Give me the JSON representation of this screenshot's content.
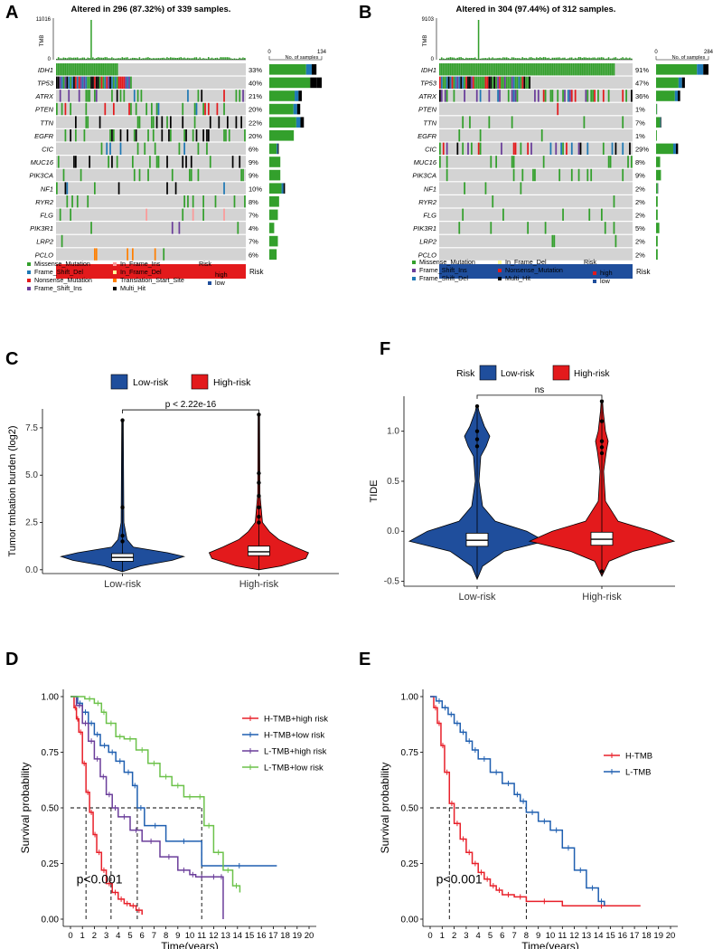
{
  "panel_letters": {
    "A": "A",
    "B": "B",
    "C": "C",
    "D": "D",
    "E": "E",
    "F": "F"
  },
  "colors": {
    "missense": "#33a02c",
    "frame_del": "#1f78b4",
    "nonsense": "#e31a1c",
    "frame_ins": "#6a3d9a",
    "inframe_ins": "#fb9a99",
    "inframe_del": "#ffff99",
    "tss": "#ff7f00",
    "multi": "#000000",
    "high": "#e31a1c",
    "low": "#1f4e9c",
    "bg": "#d3d3d3",
    "nsbar": "#33a02c"
  },
  "chart_data": [
    {
      "type": "oncoplot",
      "id": "A",
      "title": "Altered in 296 (87.32%) of 339 samples.",
      "tmb_label": "TMB",
      "tmb_max": "11016",
      "tmb_min": "0",
      "ns_axis_min": "0",
      "ns_axis_max": "134",
      "ns_label": "No. of samples",
      "genes": [
        "IDH1",
        "TP53",
        "ATRX",
        "PTEN",
        "TTN",
        "EGFR",
        "CIC",
        "MUC16",
        "PIK3CA",
        "NF1",
        "RYR2",
        "FLG",
        "PIK3R1",
        "LRP2",
        "PCLO"
      ],
      "percents": [
        "33%",
        "40%",
        "21%",
        "20%",
        "22%",
        "20%",
        "6%",
        "9%",
        "9%",
        "10%",
        "8%",
        "7%",
        "4%",
        "7%",
        "6%"
      ],
      "risk_label": "Risk",
      "legend_variants": [
        "Missense_Mutation",
        "Frame_Shift_Del",
        "Nonsense_Mutation",
        "Frame_Shift_Ins",
        "In_Frame_Ins",
        "In_Frame_Del",
        "Translation_Start_Site",
        "Multi_Hit"
      ],
      "legend_risk_title": "Risk",
      "legend_risk": [
        "high",
        "low"
      ]
    },
    {
      "type": "oncoplot",
      "id": "B",
      "title": "Altered in 304 (97.44%) of 312 samples.",
      "tmb_label": "TMB",
      "tmb_max": "9103",
      "tmb_min": "0",
      "ns_axis_min": "0",
      "ns_axis_max": "284",
      "ns_label": "No. of samples",
      "genes": [
        "IDH1",
        "TP53",
        "ATRX",
        "PTEN",
        "TTN",
        "EGFR",
        "CIC",
        "MUC16",
        "PIK3CA",
        "NF1",
        "RYR2",
        "FLG",
        "PIK3R1",
        "LRP2",
        "PCLO"
      ],
      "percents": [
        "91%",
        "47%",
        "36%",
        "1%",
        "7%",
        "1%",
        "29%",
        "8%",
        "9%",
        "2%",
        "2%",
        "2%",
        "5%",
        "2%",
        "2%"
      ],
      "risk_label": "Risk",
      "legend_variants": [
        "Missense_Mutation",
        "Frame_Shift_Ins",
        "Frame_Shift_Del",
        "In_Frame_Del",
        "Nonsense_Mutation",
        "Multi_Hit"
      ],
      "legend_risk_title": "Risk",
      "legend_risk": [
        "high",
        "low"
      ]
    },
    {
      "type": "violin",
      "id": "C",
      "legend": [
        "Low-risk",
        "High-risk"
      ],
      "categories": [
        "Low-risk",
        "High-risk"
      ],
      "ylabel": "Tumor tmbation burden (log2)",
      "yticks": [
        "0.0",
        "2.5",
        "5.0",
        "7.5"
      ],
      "ylim": [
        -0.2,
        8.5
      ],
      "pvalue": "p < 2.22e-16",
      "medians": [
        0.65,
        0.95
      ],
      "q1": [
        0.45,
        0.75
      ],
      "q3": [
        0.85,
        1.25
      ],
      "max": [
        7.9,
        8.2
      ]
    },
    {
      "type": "violin",
      "id": "F",
      "legend_title": "Risk",
      "legend": [
        "Low-risk",
        "High-risk"
      ],
      "categories": [
        "Low-risk",
        "High-risk"
      ],
      "ylabel": "TIDE",
      "yticks": [
        "-0.5",
        "0.0",
        "0.5",
        "1.0"
      ],
      "ylim": [
        -0.55,
        1.35
      ],
      "pvalue": "ns",
      "medians": [
        -0.09,
        -0.08
      ],
      "q1": [
        -0.15,
        -0.14
      ],
      "q3": [
        -0.02,
        -0.01
      ],
      "max": [
        1.25,
        1.3
      ],
      "min": [
        -0.48,
        -0.45
      ]
    },
    {
      "type": "line",
      "id": "D",
      "ylabel": "Survival probability",
      "xlabel": "Time(years)",
      "yticks": [
        "0.00",
        "0.25",
        "0.50",
        "0.75",
        "1.00"
      ],
      "xticks": [
        "0",
        "1",
        "2",
        "3",
        "4",
        "5",
        "6",
        "7",
        "8",
        "9",
        "10",
        "11",
        "12",
        "13",
        "14",
        "15",
        "16",
        "17",
        "18",
        "19",
        "20"
      ],
      "pvalue": "p<0.001",
      "series": [
        {
          "name": "H-TMB+high risk",
          "color": "#e8202a",
          "t": [
            0,
            0.3,
            0.5,
            0.7,
            1.0,
            1.3,
            1.6,
            1.9,
            2.2,
            2.6,
            3.0,
            3.5,
            4.0,
            4.5,
            5.0,
            5.5,
            6.0
          ],
          "s": [
            1.0,
            0.95,
            0.9,
            0.84,
            0.7,
            0.57,
            0.48,
            0.38,
            0.3,
            0.22,
            0.16,
            0.12,
            0.09,
            0.07,
            0.06,
            0.04,
            0.02
          ]
        },
        {
          "name": "H-TMB+low risk",
          "color": "#1f5fb0",
          "t": [
            0,
            0.6,
            1.0,
            1.5,
            2.0,
            2.5,
            3.2,
            3.8,
            4.5,
            5.2,
            5.6,
            6.2,
            8.0,
            11.0,
            17.3
          ],
          "s": [
            1.0,
            0.97,
            0.93,
            0.88,
            0.83,
            0.78,
            0.75,
            0.71,
            0.66,
            0.6,
            0.5,
            0.42,
            0.35,
            0.24,
            0.24
          ]
        },
        {
          "name": "L-TMB+high risk",
          "color": "#6a3d9a",
          "t": [
            0,
            0.5,
            1.0,
            1.5,
            2.0,
            2.5,
            3.0,
            3.5,
            4.0,
            5.0,
            6.0,
            7.5,
            9.0,
            10.0,
            10.5,
            11.5,
            12.5,
            12.8
          ],
          "s": [
            1.0,
            0.96,
            0.88,
            0.8,
            0.72,
            0.64,
            0.56,
            0.5,
            0.46,
            0.4,
            0.35,
            0.28,
            0.22,
            0.2,
            0.19,
            0.19,
            0.19,
            0.0
          ]
        },
        {
          "name": "L-TMB+low risk",
          "color": "#6cc24a",
          "t": [
            0,
            1.2,
            2.0,
            2.6,
            3.0,
            3.8,
            4.5,
            5.5,
            6.5,
            7.5,
            8.5,
            9.5,
            10.5,
            11.2,
            12.0,
            12.8,
            13.6,
            14.2
          ],
          "s": [
            1.0,
            0.99,
            0.97,
            0.93,
            0.88,
            0.82,
            0.81,
            0.76,
            0.7,
            0.64,
            0.6,
            0.55,
            0.55,
            0.42,
            0.3,
            0.22,
            0.15,
            0.12
          ]
        }
      ],
      "medians": [
        1.3,
        3.4,
        5.6,
        11.0
      ]
    },
    {
      "type": "line",
      "id": "E",
      "ylabel": "Survival probability",
      "xlabel": "Time(years)",
      "yticks": [
        "0.00",
        "0.25",
        "0.50",
        "0.75",
        "1.00"
      ],
      "xticks": [
        "0",
        "1",
        "2",
        "3",
        "4",
        "5",
        "6",
        "7",
        "8",
        "9",
        "10",
        "11",
        "12",
        "13",
        "14",
        "15",
        "16",
        "17",
        "18",
        "19",
        "20"
      ],
      "pvalue": "p<0.001",
      "series": [
        {
          "name": "H-TMB",
          "color": "#e8202a",
          "t": [
            0,
            0.3,
            0.6,
            0.9,
            1.2,
            1.6,
            2.0,
            2.5,
            3.0,
            3.5,
            4.0,
            4.5,
            5.0,
            5.5,
            6.0,
            7.0,
            8.0,
            11.0,
            17.5
          ],
          "s": [
            1.0,
            0.95,
            0.88,
            0.78,
            0.66,
            0.52,
            0.43,
            0.36,
            0.3,
            0.25,
            0.21,
            0.18,
            0.15,
            0.13,
            0.11,
            0.1,
            0.08,
            0.06,
            0.06
          ]
        },
        {
          "name": "L-TMB",
          "color": "#1f5fb0",
          "t": [
            0,
            0.5,
            1.0,
            1.5,
            2.0,
            2.5,
            3.0,
            3.5,
            4.0,
            5.0,
            6.0,
            7.0,
            7.5,
            8.0,
            9.0,
            10.0,
            11.0,
            12.0,
            13.0,
            14.0,
            14.5
          ],
          "s": [
            1.0,
            0.98,
            0.95,
            0.92,
            0.88,
            0.84,
            0.8,
            0.76,
            0.72,
            0.66,
            0.61,
            0.56,
            0.53,
            0.48,
            0.44,
            0.4,
            0.32,
            0.22,
            0.14,
            0.08,
            0.06
          ]
        }
      ],
      "medians": [
        1.6,
        8.0
      ]
    }
  ]
}
